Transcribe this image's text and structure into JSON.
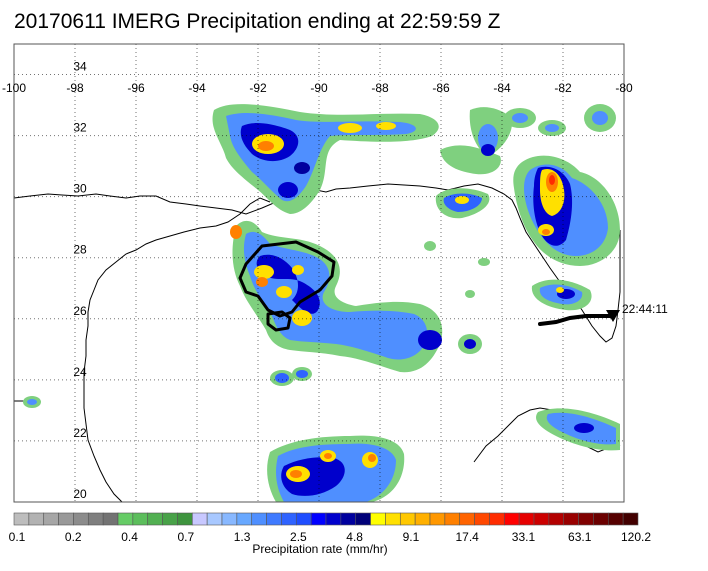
{
  "title": "20170611 IMERG Precipitation ending at 22:59:59 Z",
  "map": {
    "lon_labels": [
      "-100",
      "-98",
      "-96",
      "-94",
      "-92",
      "-90",
      "-88",
      "-86",
      "-84",
      "-82",
      "-80"
    ],
    "lat_labels": [
      "34",
      "32",
      "30",
      "28",
      "26",
      "24",
      "22",
      "20"
    ],
    "track_end_label": "22:44:11",
    "track_marker_icon": "down-triangle-icon"
  },
  "colorbar": {
    "label": "Precipitation rate (mm/hr)",
    "tick_labels": [
      "0.1",
      "0.2",
      "0.4",
      "0.7",
      "1.3",
      "2.5",
      "4.8",
      "9.1",
      "17.4",
      "33.1",
      "63.1",
      "120.2"
    ],
    "colors": [
      "#bdbdbd",
      "#b2b2b2",
      "#a6a6a6",
      "#999999",
      "#8c8c8c",
      "#7f7f7f",
      "#737373",
      "#66cc66",
      "#5cbe5c",
      "#52b052",
      "#48a248",
      "#3e943e",
      "#c8c8ff",
      "#a8c8ff",
      "#88b8ff",
      "#68a8ff",
      "#4f8fff",
      "#3f7aff",
      "#2f63ff",
      "#1f4dff",
      "#0000ff",
      "#0000cc",
      "#00009e",
      "#000078",
      "#ffff00",
      "#ffe000",
      "#ffc800",
      "#ffb000",
      "#ff9800",
      "#ff8000",
      "#ff6400",
      "#ff4800",
      "#ff2c00",
      "#ff0000",
      "#e60000",
      "#cc0000",
      "#b30000",
      "#990000",
      "#800000",
      "#6b0000",
      "#560000",
      "#420000"
    ]
  }
}
